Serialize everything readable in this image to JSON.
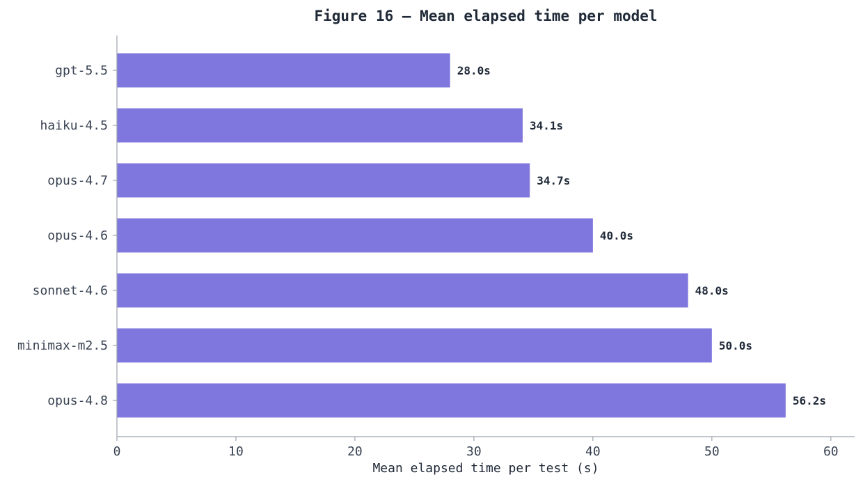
{
  "chart_data": {
    "type": "bar",
    "orientation": "horizontal",
    "title": "Figure 16 — Mean elapsed time per model",
    "xlabel": "Mean elapsed time per test (s)",
    "ylabel": "",
    "xlim": [
      0,
      62
    ],
    "xticks": [
      0,
      10,
      20,
      30,
      40,
      50,
      60
    ],
    "xtick_labels": [
      "0",
      "10",
      "20",
      "30",
      "40",
      "50",
      "60"
    ],
    "grid": false,
    "categories": [
      "gpt-5.5",
      "haiku-4.5",
      "opus-4.7",
      "opus-4.6",
      "sonnet-4.6",
      "minimax-m2.5",
      "opus-4.8"
    ],
    "values": [
      28.0,
      34.1,
      34.7,
      40.0,
      48.0,
      50.0,
      56.2
    ],
    "value_labels": [
      "28.0s",
      "34.1s",
      "34.7s",
      "40.0s",
      "48.0s",
      "50.0s",
      "56.2s"
    ],
    "bar_color": "#7f77dd"
  }
}
